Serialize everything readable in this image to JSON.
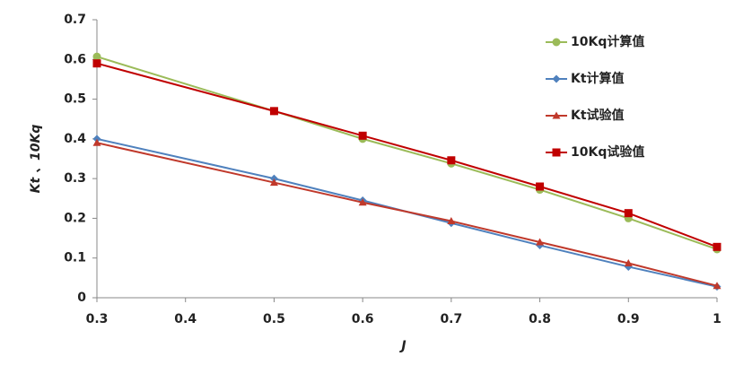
{
  "chart_data": {
    "type": "line",
    "xlabel": "J",
    "ylabel": "Kt 、10Kq",
    "x": [
      0.3,
      0.5,
      0.6,
      0.7,
      0.8,
      0.9,
      1
    ],
    "xlim": [
      0.3,
      1
    ],
    "xticks": [
      0.3,
      0.4,
      0.5,
      0.6,
      0.7,
      0.8,
      0.9,
      1
    ],
    "ylim": [
      0,
      0.7
    ],
    "yticks": [
      0,
      0.1,
      0.2,
      0.3,
      0.4,
      0.5,
      0.6,
      0.7
    ],
    "grid": false,
    "legend": "upper right",
    "series": [
      {
        "name": "10Kq计算值",
        "color": "#9bbb59",
        "marker": "circle",
        "values": [
          0.607,
          0.47,
          0.4,
          0.338,
          0.272,
          0.2,
          0.122
        ]
      },
      {
        "name": "Kt计算值",
        "color": "#4f81bd",
        "marker": "diamond",
        "values": [
          0.4,
          0.3,
          0.245,
          0.188,
          0.132,
          0.078,
          0.028
        ]
      },
      {
        "name": "Kt试验值",
        "color": "#c0392b",
        "marker": "triangle",
        "values": [
          0.39,
          0.29,
          0.24,
          0.193,
          0.14,
          0.087,
          0.03
        ]
      },
      {
        "name": "10Kq试验值",
        "color": "#c00000",
        "marker": "square",
        "values": [
          0.59,
          0.47,
          0.408,
          0.346,
          0.28,
          0.213,
          0.128
        ]
      }
    ]
  }
}
